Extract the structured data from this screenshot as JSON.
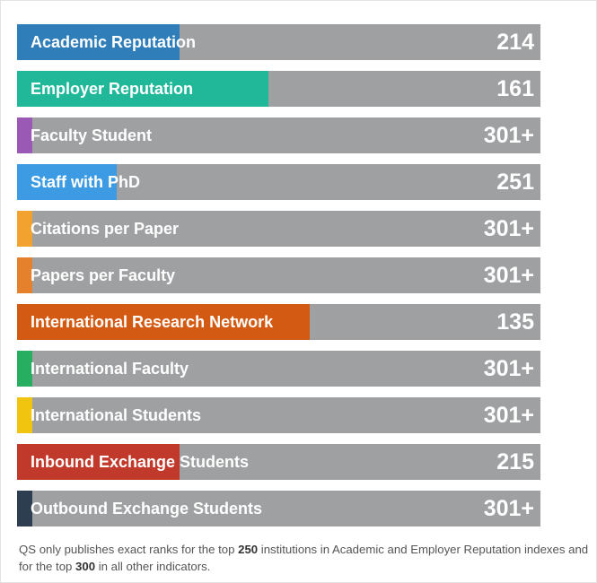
{
  "chart_data": {
    "type": "bar",
    "title": "",
    "categories": [
      "Academic Reputation",
      "Employer Reputation",
      "Faculty Student",
      "Staff with PhD",
      "Citations per Paper",
      "Papers per Faculty",
      "International Research Network",
      "International Faculty",
      "International Students",
      "Inbound Exchange Students",
      "Outbound Exchange Students"
    ],
    "rank_labels": [
      "214",
      "161",
      "301+",
      "251",
      "301+",
      "301+",
      "135",
      "301+",
      "301+",
      "215",
      "301+"
    ],
    "fill_fraction": [
      0.31,
      0.48,
      0.03,
      0.19,
      0.03,
      0.03,
      0.56,
      0.03,
      0.03,
      0.31,
      0.03
    ],
    "colors": [
      "#2f7db9",
      "#21b89a",
      "#9b59b6",
      "#3d9be3",
      "#f2a22e",
      "#e5812d",
      "#d35a12",
      "#27ae60",
      "#f1c40f",
      "#c0392b",
      "#2c3e50"
    ],
    "track_color": "#9ea0a2"
  },
  "footnote": {
    "part1": "QS only publishes exact ranks for the top ",
    "num1": "250",
    "part2": " institutions in Academic and Employer Reputation indexes and for the top ",
    "num2": "300",
    "part3": " in all other indicators."
  }
}
